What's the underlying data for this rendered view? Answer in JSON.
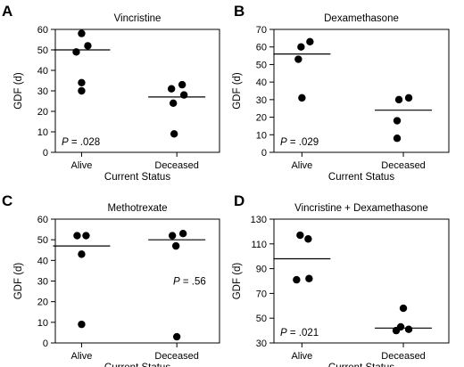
{
  "chart_data": [
    {
      "type": "scatter",
      "panel": "A",
      "title": "Vincristine",
      "ylabel": "GDF (d)",
      "xlabel": "Current Status",
      "categories": [
        "Alive",
        "Deceased"
      ],
      "yticks": [
        0,
        10,
        20,
        30,
        40,
        50,
        60
      ],
      "ylim": [
        0,
        60
      ],
      "p_value": {
        "prefix": "P",
        "value": " = .028",
        "placement": "bottom-left"
      },
      "series": [
        {
          "category": "Alive",
          "points": [
            58,
            52,
            49,
            34,
            30
          ],
          "median": 50
        },
        {
          "category": "Deceased",
          "points": [
            33,
            31,
            28,
            24,
            9
          ],
          "median": 27
        }
      ]
    },
    {
      "type": "scatter",
      "panel": "B",
      "title": "Dexamethasone",
      "ylabel": "GDF (d)",
      "xlabel": "Current Status",
      "categories": [
        "Alive",
        "Deceased"
      ],
      "yticks": [
        0,
        10,
        20,
        30,
        40,
        50,
        60,
        70
      ],
      "ylim": [
        0,
        70
      ],
      "p_value": {
        "prefix": "P",
        "value": " = .029",
        "placement": "bottom-left"
      },
      "series": [
        {
          "category": "Alive",
          "points": [
            63,
            60,
            53,
            31
          ],
          "median": 56
        },
        {
          "category": "Deceased",
          "points": [
            31,
            30,
            18,
            8
          ],
          "median": 24
        }
      ]
    },
    {
      "type": "scatter",
      "panel": "C",
      "title": "Methotrexate",
      "ylabel": "GDF (d)",
      "xlabel": "Current Status",
      "categories": [
        "Alive",
        "Deceased"
      ],
      "yticks": [
        0,
        10,
        20,
        30,
        40,
        50,
        60
      ],
      "ylim": [
        0,
        60
      ],
      "p_value": {
        "prefix": "P",
        "value": " = .56",
        "placement": "right"
      },
      "series": [
        {
          "category": "Alive",
          "points": [
            52,
            52,
            43,
            9
          ],
          "median": 47
        },
        {
          "category": "Deceased",
          "points": [
            53,
            52,
            47,
            3
          ],
          "median": 50
        }
      ]
    },
    {
      "type": "scatter",
      "panel": "D",
      "title": "Vincristine + Dexamethasone",
      "ylabel": "GDF (d)",
      "xlabel": "Current Status",
      "categories": [
        "Alive",
        "Deceased"
      ],
      "yticks": [
        30,
        50,
        70,
        90,
        110,
        130
      ],
      "ylim": [
        30,
        130
      ],
      "p_value": {
        "prefix": "P",
        "value": " = .021",
        "placement": "bottom-left"
      },
      "series": [
        {
          "category": "Alive",
          "points": [
            117,
            114,
            82,
            81
          ],
          "median": 98
        },
        {
          "category": "Deceased",
          "points": [
            58,
            43,
            41,
            40
          ],
          "median": 42
        }
      ]
    }
  ]
}
